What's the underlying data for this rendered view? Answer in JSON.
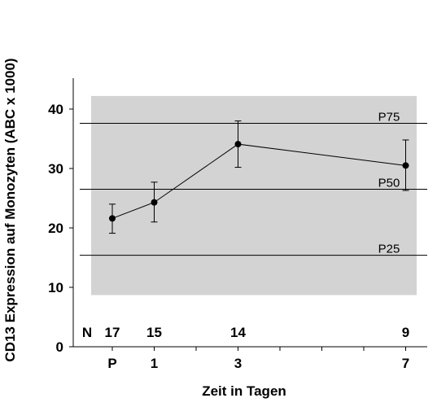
{
  "chart_data": {
    "type": "line",
    "title": "",
    "xlabel": "Zeit in Tagen",
    "ylabel": "CD13 Expression auf Monozyten (ABC x 1000)",
    "ylim": [
      0,
      45
    ],
    "yticks": [
      0,
      10,
      20,
      30,
      40
    ],
    "x_positions": [
      -1,
      0,
      1,
      2,
      3,
      4,
      5,
      6,
      7
    ],
    "xtick_labels": [
      {
        "x": -1,
        "label": "P"
      },
      {
        "x": 0,
        "label": "1"
      },
      {
        "x": 2,
        "label": "3"
      },
      {
        "x": 6,
        "label": "7"
      }
    ],
    "reference_band": {
      "low": 8.7,
      "high": 42.2,
      "color": "#d3d3d3"
    },
    "reference_lines": [
      {
        "label": "P75",
        "value": 37.6
      },
      {
        "label": "P50",
        "value": 26.5
      },
      {
        "label": "P25",
        "value": 15.4
      }
    ],
    "series": [
      {
        "x": [
          -1,
          0,
          2,
          6
        ],
        "y": [
          21.6,
          24.3,
          34.1,
          30.5
        ],
        "yerr_low": [
          19.1,
          21.0,
          30.2,
          26.3
        ],
        "yerr_high": [
          24.0,
          27.7,
          38.0,
          34.8
        ]
      }
    ],
    "n_label": "N",
    "n_counts": [
      {
        "x": -1,
        "n": "17"
      },
      {
        "x": 0,
        "n": "15"
      },
      {
        "x": 2,
        "n": "14"
      },
      {
        "x": 6,
        "n": "9"
      }
    ],
    "legend": "none",
    "grid": false
  }
}
